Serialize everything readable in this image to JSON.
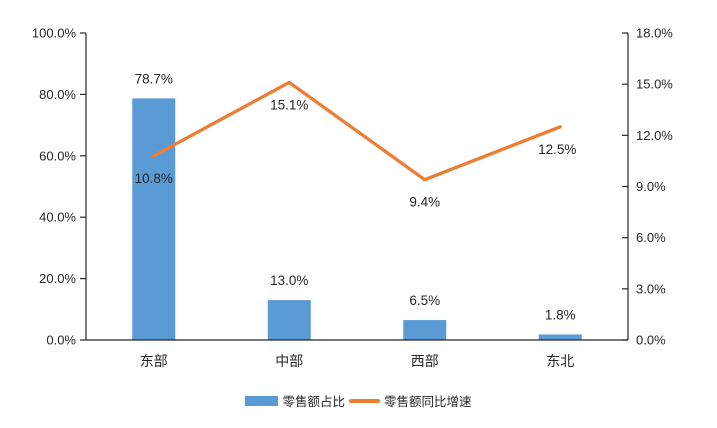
{
  "chart_data": {
    "type": "combo",
    "title": "",
    "categories": [
      "东部",
      "中部",
      "西部",
      "东北"
    ],
    "series": [
      {
        "name": "零售额占比",
        "type": "bar",
        "axis": "left",
        "values": [
          78.7,
          13.0,
          6.5,
          1.8
        ],
        "labels": [
          "78.7%",
          "13.0%",
          "6.5%",
          "1.8%"
        ],
        "color": "#5B9BD5"
      },
      {
        "name": "零售额同比增速",
        "type": "line",
        "axis": "right",
        "values": [
          10.8,
          15.1,
          9.4,
          12.5
        ],
        "labels": [
          "10.8%",
          "15.1%",
          "9.4%",
          "12.5%"
        ],
        "color": "#ED7D31"
      }
    ],
    "left_axis": {
      "min": 0,
      "max": 100,
      "step": 20,
      "tick_labels": [
        "100.0%",
        "80.0%",
        "60.0%",
        "40.0%",
        "20.0%",
        "0.0%"
      ]
    },
    "right_axis": {
      "min": 0,
      "max": 18,
      "step": 3,
      "tick_labels": [
        "18.0%",
        "15.0%",
        "12.0%",
        "9.0%",
        "6.0%",
        "3.0%",
        "0.0%"
      ]
    },
    "grid": false,
    "legend": {
      "position": "bottom",
      "items": [
        {
          "label": "零售额占比",
          "swatch": "bar",
          "color": "#5B9BD5"
        },
        {
          "label": "零售额同比增速",
          "swatch": "line",
          "color": "#ED7D31"
        }
      ]
    },
    "colors": {
      "axis": "#262626",
      "text": "#262626",
      "background": "#ffffff"
    }
  }
}
